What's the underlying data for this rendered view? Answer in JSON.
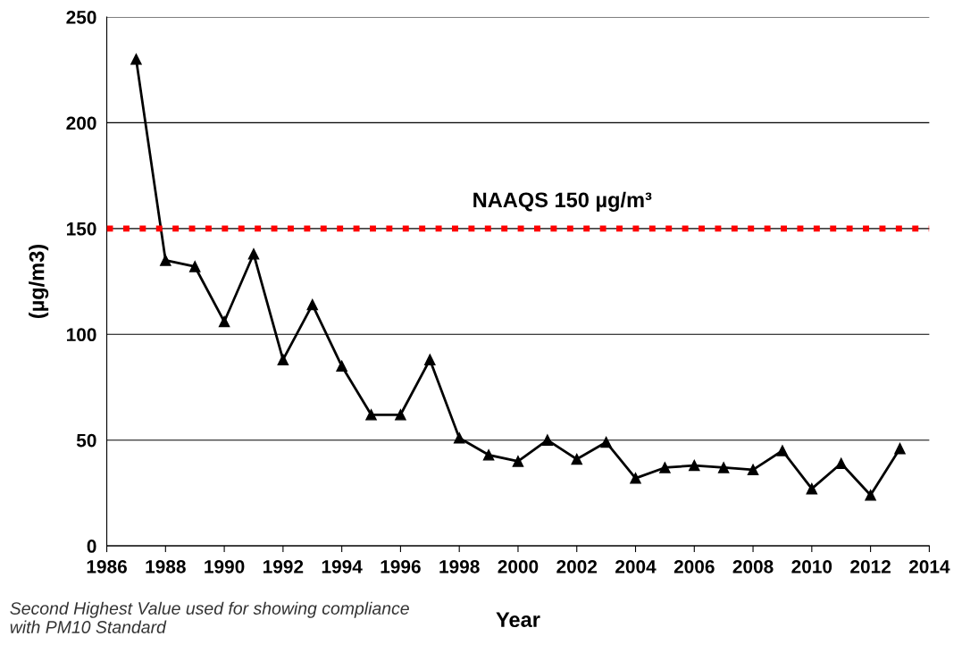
{
  "chart_data": {
    "type": "line",
    "xlabel": "Year",
    "ylabel": "(µg/m3)",
    "x": [
      1987,
      1988,
      1989,
      1990,
      1991,
      1992,
      1993,
      1994,
      1995,
      1996,
      1997,
      1998,
      1999,
      2000,
      2001,
      2002,
      2003,
      2004,
      2005,
      2006,
      2007,
      2008,
      2009,
      2010,
      2011,
      2012,
      2013
    ],
    "series": [
      {
        "color": "#000000",
        "values": [
          230,
          135,
          132,
          106,
          138,
          88,
          114,
          85,
          62,
          62,
          88,
          51,
          43,
          40,
          50,
          41,
          49,
          32,
          37,
          38,
          37,
          36,
          45,
          27,
          39,
          24,
          46
        ]
      }
    ],
    "xlim": [
      1986,
      2014
    ],
    "xticks": [
      1986,
      1988,
      1990,
      1992,
      1994,
      1996,
      1998,
      2000,
      2002,
      2004,
      2006,
      2008,
      2010,
      2012,
      2014
    ],
    "ylim": [
      0,
      250
    ],
    "yticks": [
      0,
      50,
      100,
      150,
      200,
      250
    ],
    "grid": "y",
    "marker": "triangle",
    "line_style": "solid",
    "ref_lines": [
      {
        "axis": "y",
        "value": 150,
        "label": "NAAQS 150 µg/m³",
        "color": "#ff0000",
        "line_style": "dotted"
      }
    ],
    "annotations": [
      "Second Highest Value used for showing compliance with PM10 Standard"
    ]
  }
}
